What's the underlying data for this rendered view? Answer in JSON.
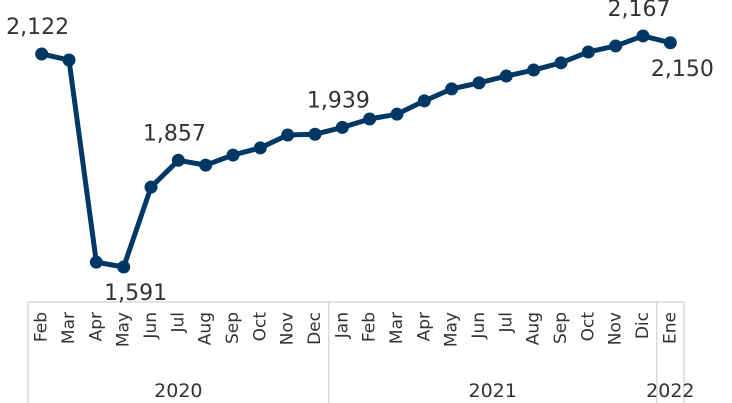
{
  "chart_data": {
    "type": "line",
    "groups": [
      {
        "name": "2020",
        "categories": [
          "Feb",
          "Mar",
          "Apr",
          "May",
          "Jun",
          "Jul",
          "Aug",
          "Sep",
          "Oct",
          "Nov",
          "Dec"
        ]
      },
      {
        "name": "2021",
        "categories": [
          "Jan",
          "Feb",
          "Mar",
          "Apr",
          "May",
          "Jun",
          "Jul",
          "Aug",
          "Sep",
          "Oct",
          "Nov",
          "Dic"
        ]
      },
      {
        "name": "2022",
        "categories": [
          "Ene"
        ]
      }
    ],
    "values": [
      2122,
      2107,
      1603,
      1591,
      1790,
      1857,
      1845,
      1870,
      1888,
      1920,
      1922,
      1939,
      1960,
      1972,
      2005,
      2035,
      2050,
      2067,
      2082,
      2100,
      2127,
      2142,
      2167,
      2150
    ],
    "value_labels": [
      "2,122",
      null,
      null,
      "1,591",
      null,
      "1,857",
      null,
      null,
      null,
      null,
      null,
      "1,939",
      null,
      null,
      null,
      null,
      null,
      null,
      null,
      null,
      null,
      null,
      "2,167",
      "2,150"
    ],
    "color": "#003865",
    "ylim": [
      1500,
      2200
    ]
  }
}
